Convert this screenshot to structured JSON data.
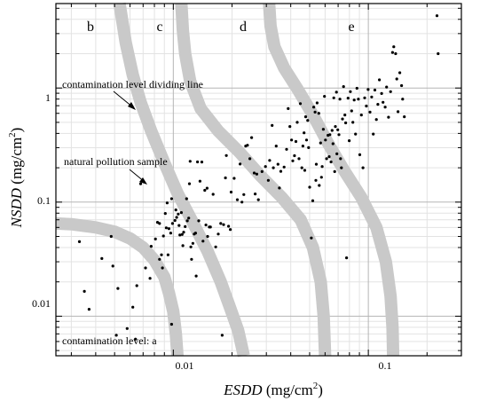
{
  "chart_data": {
    "type": "scatter",
    "x_scale": "log",
    "y_scale": "log",
    "xlim": [
      0.0025,
      0.3
    ],
    "ylim": [
      0.0045,
      5.5
    ],
    "x_ticks": [
      {
        "value": 0.01,
        "label": "0.01"
      },
      {
        "value": 0.1,
        "label": "0.1"
      }
    ],
    "y_ticks": [
      {
        "value": 0.01,
        "label": "0.01"
      },
      {
        "value": 0.1,
        "label": "0.1"
      },
      {
        "value": 1,
        "label": "1"
      }
    ],
    "xlabel": {
      "main": "ESDD",
      "unit_pre": " (mg/cm",
      "sup": "2",
      "unit_post": ")"
    },
    "ylabel": {
      "main": "NSDD",
      "unit_pre": " (mg/cm",
      "sup": "2",
      "unit_post": ")"
    },
    "grid": true,
    "region_labels": [
      "b",
      "c",
      "d",
      "e"
    ],
    "annotations": {
      "dividing_line": "contamination level dividing line",
      "pollution_sample": "natural pollution sample",
      "level_a": "contamination level: a"
    },
    "dividing_lines": [
      {
        "name": "a|b",
        "points": [
          [
            0.0025,
            0.065
          ],
          [
            0.003,
            0.064
          ],
          [
            0.004,
            0.06
          ],
          [
            0.005,
            0.055
          ],
          [
            0.006,
            0.048
          ],
          [
            0.007,
            0.04
          ],
          [
            0.008,
            0.031
          ],
          [
            0.009,
            0.022
          ],
          [
            0.0095,
            0.016
          ],
          [
            0.01,
            0.011
          ],
          [
            0.0103,
            0.007
          ],
          [
            0.0105,
            0.0045
          ]
        ]
      },
      {
        "name": "b|c",
        "points": [
          [
            0.0053,
            5.5
          ],
          [
            0.0057,
            2.5
          ],
          [
            0.0062,
            1.3
          ],
          [
            0.0068,
            0.75
          ],
          [
            0.0077,
            0.42
          ],
          [
            0.009,
            0.22
          ],
          [
            0.0105,
            0.12
          ],
          [
            0.0125,
            0.068
          ],
          [
            0.015,
            0.037
          ],
          [
            0.0175,
            0.02
          ],
          [
            0.0195,
            0.012
          ],
          [
            0.0215,
            0.0075
          ],
          [
            0.023,
            0.0045
          ]
        ]
      },
      {
        "name": "c|d",
        "points": [
          [
            0.011,
            5.5
          ],
          [
            0.0112,
            3.2
          ],
          [
            0.0115,
            2.0
          ],
          [
            0.0122,
            1.15
          ],
          [
            0.0138,
            0.66
          ],
          [
            0.017,
            0.42
          ],
          [
            0.022,
            0.27
          ],
          [
            0.028,
            0.17
          ],
          [
            0.036,
            0.11
          ],
          [
            0.045,
            0.07
          ],
          [
            0.052,
            0.04
          ],
          [
            0.057,
            0.02
          ],
          [
            0.059,
            0.01
          ],
          [
            0.06,
            0.0045
          ]
        ]
      },
      {
        "name": "d|e",
        "points": [
          [
            0.031,
            5.5
          ],
          [
            0.0315,
            3.5
          ],
          [
            0.033,
            2.3
          ],
          [
            0.037,
            1.5
          ],
          [
            0.043,
            1.0
          ],
          [
            0.052,
            0.58
          ],
          [
            0.062,
            0.33
          ],
          [
            0.075,
            0.19
          ],
          [
            0.092,
            0.11
          ],
          [
            0.11,
            0.06
          ],
          [
            0.123,
            0.03
          ],
          [
            0.13,
            0.015
          ],
          [
            0.133,
            0.008
          ],
          [
            0.134,
            0.0045
          ]
        ]
      }
    ],
    "points": [
      [
        0.0033,
        0.045
      ],
      [
        0.0035,
        0.0165
      ],
      [
        0.0037,
        0.0115
      ],
      [
        0.0043,
        0.032
      ],
      [
        0.0048,
        0.05
      ],
      [
        0.0049,
        0.0275
      ],
      [
        0.0051,
        0.0068
      ],
      [
        0.0052,
        0.0175
      ],
      [
        0.0058,
        0.0078
      ],
      [
        0.0062,
        0.012
      ],
      [
        0.0064,
        0.0063
      ],
      [
        0.0065,
        0.0185
      ],
      [
        0.0068,
        0.145
      ],
      [
        0.0072,
        0.0265
      ],
      [
        0.0076,
        0.0215
      ],
      [
        0.0077,
        0.041
      ],
      [
        0.0081,
        0.0475
      ],
      [
        0.0083,
        0.0665
      ],
      [
        0.0085,
        0.065
      ],
      [
        0.0085,
        0.0315
      ],
      [
        0.0087,
        0.0345
      ],
      [
        0.0088,
        0.0265
      ],
      [
        0.0089,
        0.0505
      ],
      [
        0.0091,
        0.0795
      ],
      [
        0.0092,
        0.0595
      ],
      [
        0.0093,
        0.0985
      ],
      [
        0.0094,
        0.0345
      ],
      [
        0.0095,
        0.0585
      ],
      [
        0.0097,
        0.0535
      ],
      [
        0.0098,
        0.107
      ],
      [
        0.0098,
        0.0085
      ],
      [
        0.0099,
        0.065
      ],
      [
        0.0102,
        0.069
      ],
      [
        0.0103,
        0.0855
      ],
      [
        0.0104,
        0.0735
      ],
      [
        0.0106,
        0.0785
      ],
      [
        0.0107,
        0.0625
      ],
      [
        0.0108,
        0.0515
      ],
      [
        0.011,
        0.081
      ],
      [
        0.0111,
        0.052
      ],
      [
        0.0112,
        0.0415
      ],
      [
        0.0113,
        0.0545
      ],
      [
        0.0115,
        0.061
      ],
      [
        0.0117,
        0.107
      ],
      [
        0.0118,
        0.0685
      ],
      [
        0.012,
        0.0725
      ],
      [
        0.0121,
        0.145
      ],
      [
        0.0122,
        0.228
      ],
      [
        0.0123,
        0.0405
      ],
      [
        0.0124,
        0.0315
      ],
      [
        0.0126,
        0.0435
      ],
      [
        0.0128,
        0.0525
      ],
      [
        0.013,
        0.0535
      ],
      [
        0.0131,
        0.0225
      ],
      [
        0.0133,
        0.225
      ],
      [
        0.0135,
        0.0685
      ],
      [
        0.0137,
        0.1525
      ],
      [
        0.014,
        0.2245
      ],
      [
        0.0142,
        0.0455
      ],
      [
        0.0145,
        0.127
      ],
      [
        0.0147,
        0.063
      ],
      [
        0.0149,
        0.1325
      ],
      [
        0.015,
        0.05
      ],
      [
        0.0153,
        0.0605
      ],
      [
        0.0155,
        0.0605
      ],
      [
        0.016,
        0.117
      ],
      [
        0.0165,
        0.0405
      ],
      [
        0.017,
        0.0525
      ],
      [
        0.0175,
        0.065
      ],
      [
        0.0178,
        0.0068
      ],
      [
        0.0181,
        0.0635
      ],
      [
        0.0185,
        0.163
      ],
      [
        0.0187,
        0.256
      ],
      [
        0.0192,
        0.0615
      ],
      [
        0.0196,
        0.0575
      ],
      [
        0.0198,
        0.1225
      ],
      [
        0.0205,
        0.1615
      ],
      [
        0.0213,
        0.105
      ],
      [
        0.022,
        0.2155
      ],
      [
        0.0225,
        0.1
      ],
      [
        0.023,
        0.1165
      ],
      [
        0.0235,
        0.31
      ],
      [
        0.024,
        0.315
      ],
      [
        0.0247,
        0.24
      ],
      [
        0.0252,
        0.3675
      ],
      [
        0.026,
        0.18
      ],
      [
        0.0263,
        0.118
      ],
      [
        0.0268,
        0.176
      ],
      [
        0.0273,
        0.105
      ],
      [
        0.0285,
        0.185
      ],
      [
        0.0297,
        0.205
      ],
      [
        0.0307,
        0.155
      ],
      [
        0.0312,
        0.232
      ],
      [
        0.0321,
        0.47
      ],
      [
        0.0326,
        0.2
      ],
      [
        0.0337,
        0.31
      ],
      [
        0.0344,
        0.215
      ],
      [
        0.035,
        0.133
      ],
      [
        0.0356,
        0.186
      ],
      [
        0.037,
        0.203
      ],
      [
        0.0381,
        0.29
      ],
      [
        0.0388,
        0.66
      ],
      [
        0.0396,
        0.46
      ],
      [
        0.0404,
        0.35
      ],
      [
        0.041,
        0.23
      ],
      [
        0.0418,
        0.255
      ],
      [
        0.0425,
        0.34
      ],
      [
        0.0432,
        0.5
      ],
      [
        0.0441,
        0.24
      ],
      [
        0.0448,
        0.73
      ],
      [
        0.0456,
        0.2
      ],
      [
        0.0462,
        0.31
      ],
      [
        0.0468,
        0.405
      ],
      [
        0.0472,
        0.19
      ],
      [
        0.0477,
        0.56
      ],
      [
        0.0482,
        0.35
      ],
      [
        0.0489,
        0.52
      ],
      [
        0.0494,
        0.3
      ],
      [
        0.05,
        0.135
      ],
      [
        0.051,
        0.0485
      ],
      [
        0.0519,
        0.103
      ],
      [
        0.0525,
        0.68
      ],
      [
        0.0533,
        0.615
      ],
      [
        0.0538,
        0.155
      ],
      [
        0.0541,
        0.215
      ],
      [
        0.0546,
        0.74
      ],
      [
        0.0557,
        0.6
      ],
      [
        0.056,
        0.14
      ],
      [
        0.0569,
        0.33
      ],
      [
        0.0575,
        0.165
      ],
      [
        0.058,
        0.205
      ],
      [
        0.0588,
        0.435
      ],
      [
        0.0596,
        0.845
      ],
      [
        0.0603,
        0.35
      ],
      [
        0.0611,
        0.24
      ],
      [
        0.0621,
        0.385
      ],
      [
        0.063,
        0.25
      ],
      [
        0.0635,
        0.39
      ],
      [
        0.0644,
        0.225
      ],
      [
        0.0652,
        0.425
      ],
      [
        0.0659,
        0.325
      ],
      [
        0.0665,
        0.82
      ],
      [
        0.0672,
        0.185
      ],
      [
        0.0678,
        0.46
      ],
      [
        0.0686,
        0.92
      ],
      [
        0.069,
        0.265
      ],
      [
        0.0697,
        0.43
      ],
      [
        0.0707,
        0.39
      ],
      [
        0.0715,
        0.8
      ],
      [
        0.072,
        0.24
      ],
      [
        0.0728,
        0.2
      ],
      [
        0.0737,
        0.535
      ],
      [
        0.0746,
        1.03
      ],
      [
        0.0758,
        0.58
      ],
      [
        0.0765,
        0.495
      ],
      [
        0.0773,
        0.0325
      ],
      [
        0.0787,
        0.815
      ],
      [
        0.0798,
        0.345
      ],
      [
        0.0809,
        0.93
      ],
      [
        0.0821,
        0.63
      ],
      [
        0.0833,
        0.5
      ],
      [
        0.0846,
        0.785
      ],
      [
        0.086,
        0.395
      ],
      [
        0.0874,
        0.995
      ],
      [
        0.0889,
        0.8
      ],
      [
        0.0904,
        0.26
      ],
      [
        0.0921,
        0.58
      ],
      [
        0.0939,
        0.2
      ],
      [
        0.0958,
        0.82
      ],
      [
        0.0977,
        0.695
      ],
      [
        0.0998,
        0.97
      ],
      [
        0.102,
        0.615
      ],
      [
        0.104,
        0.835
      ],
      [
        0.106,
        0.395
      ],
      [
        0.108,
        0.96
      ],
      [
        0.11,
        0.53
      ],
      [
        0.112,
        0.72
      ],
      [
        0.114,
        1.18
      ],
      [
        0.117,
        0.895
      ],
      [
        0.119,
        0.75
      ],
      [
        0.122,
        0.68
      ],
      [
        0.124,
        1.02
      ],
      [
        0.127,
        0.555
      ],
      [
        0.13,
        0.93
      ],
      [
        0.133,
        2.05
      ],
      [
        0.135,
        2.3
      ],
      [
        0.138,
        2.0
      ],
      [
        0.14,
        1.2
      ],
      [
        0.142,
        0.62
      ],
      [
        0.145,
        1.36
      ],
      [
        0.148,
        1.05
      ],
      [
        0.15,
        0.8
      ],
      [
        0.153,
        0.56
      ],
      [
        0.225,
        4.3
      ],
      [
        0.228,
        2.0
      ]
    ]
  }
}
